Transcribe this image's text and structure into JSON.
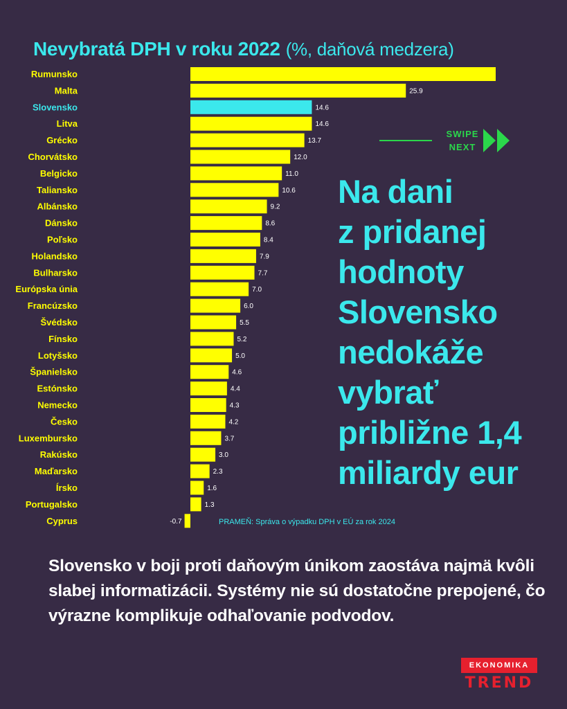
{
  "header": {
    "title": "Nevybratá DPH v roku 2022",
    "subtitle": "(%, daňová medzera)"
  },
  "swipe": {
    "line1": "SWIPE",
    "line2": "NEXT"
  },
  "headline": [
    "Na dani",
    "z pridanej",
    "hodnoty",
    "Slovensko",
    "nedokáže",
    "vybrať",
    "približne 1,4",
    "miliardy eur"
  ],
  "source": "PRAMEŇ: Správa o výpadku DPH v EÚ za rok 2024",
  "bottom_text": "Slovensko v boji proti daňovým únikom zaostáva najmä kvôli slabej informatizácii. Systémy nie sú dostatočne prepojené, čo výrazne komplikuje odhaľovanie podvodov.",
  "logo": {
    "top": "EKONOMIKA",
    "bottom": "TREND"
  },
  "colors": {
    "background": "#372b45",
    "bar": "#ffff00",
    "highlight": "#3be8ec",
    "accent_green": "#2bd74b",
    "brand_red": "#e6202e"
  },
  "chart_data": {
    "type": "bar",
    "orientation": "horizontal",
    "categories": [
      "Rumunsko",
      "Malta",
      "Slovensko",
      "Litva",
      "Grécko",
      "Chorvátsko",
      "Belgicko",
      "Taliansko",
      "Albánsko",
      "Dánsko",
      "Poľsko",
      "Holandsko",
      "Bulharsko",
      "Európska únia",
      "Francúzsko",
      "Švédsko",
      "Fínsko",
      "Lotyšsko",
      "Španielsko",
      "Estónsko",
      "Nemecko",
      "Česko",
      "Luxembursko",
      "Rakúsko",
      "Maďarsko",
      "Írsko",
      "Portugalsko",
      "Cyprus"
    ],
    "values": [
      36.7,
      25.9,
      14.6,
      14.6,
      13.7,
      12.0,
      11.0,
      10.6,
      9.2,
      8.6,
      8.4,
      7.9,
      7.7,
      7.0,
      6.0,
      5.5,
      5.2,
      5.0,
      4.6,
      4.4,
      4.3,
      4.2,
      3.7,
      3.0,
      2.3,
      1.6,
      1.3,
      -0.7
    ],
    "labels": [
      "",
      "25.9",
      "14.6",
      "14.6",
      "13.7",
      "12.0",
      "11.0",
      "10.6",
      "9.2",
      "8.6",
      "8.4",
      "7.9",
      "7.7",
      "7.0",
      "6.0",
      "5.5",
      "5.2",
      "5.0",
      "4.6",
      "4.4",
      "4.3",
      "4.2",
      "3.7",
      "3.0",
      "2.3",
      "1.6",
      "1.3",
      "-0.7"
    ],
    "highlight": "Slovensko",
    "title": "Nevybratá DPH v roku 2022",
    "xlabel": "",
    "ylabel": "",
    "xlim": [
      -0.7,
      36.7
    ],
    "grid": false,
    "legend": "none"
  }
}
